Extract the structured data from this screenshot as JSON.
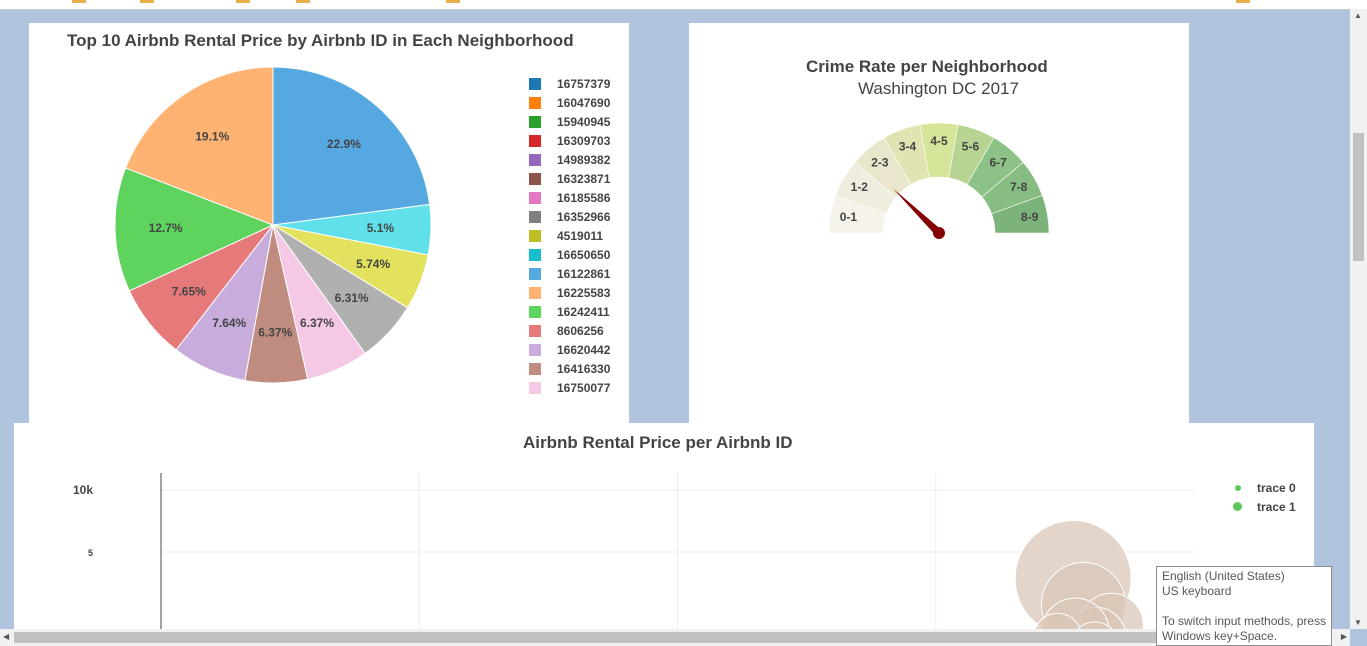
{
  "colors": {
    "page_background": "#b0c4de",
    "panel_background": "#ffffff",
    "gauge_needle": "#850000",
    "bubble_fill": "#d9c7b8"
  },
  "pie_chart": {
    "title": "Top 10 Airbnb Rental Price by Airbnb ID in Each Neighborhood"
  },
  "gauge_chart": {
    "title": "Crime Rate per Neighborhood",
    "subtitle": "Washington DC 2017"
  },
  "bubble_chart": {
    "title": "Airbnb Rental Price per Airbnb ID"
  },
  "chart_data": [
    {
      "type": "pie",
      "title": "Top 10 Airbnb Rental Price by Airbnb ID in Each Neighborhood",
      "slices": [
        {
          "label": "16122861",
          "percent": 22.9,
          "color": "#56a8e0"
        },
        {
          "label": "16650650",
          "percent": 5.1,
          "color": "#5fe0ea"
        },
        {
          "label": "4519011",
          "percent": 5.74,
          "color": "#e2e25e"
        },
        {
          "label": "16352966",
          "percent": 6.31,
          "color": "#b0b0b0"
        },
        {
          "label": "16750077",
          "percent": 6.37,
          "color": "#f5c8e6"
        },
        {
          "label": "16416330",
          "percent": 6.37,
          "color": "#c08c80"
        },
        {
          "label": "16620442",
          "percent": 7.64,
          "color": "#c8acdc"
        },
        {
          "label": "8606256",
          "percent": 7.65,
          "color": "#e67a7a"
        },
        {
          "label": "16242411",
          "percent": 12.7,
          "color": "#5ed35e"
        },
        {
          "label": "16225583",
          "percent": 19.1,
          "color": "#ffb373"
        }
      ],
      "legend": [
        {
          "label": "16757379",
          "color": "#1f77b4"
        },
        {
          "label": "16047690",
          "color": "#ff7f0e"
        },
        {
          "label": "15940945",
          "color": "#2ca02c"
        },
        {
          "label": "16309703",
          "color": "#d62728"
        },
        {
          "label": "14989382",
          "color": "#9467bd"
        },
        {
          "label": "16323871",
          "color": "#8c564b"
        },
        {
          "label": "16185586",
          "color": "#e377c2"
        },
        {
          "label": "16352966",
          "color": "#7f7f7f"
        },
        {
          "label": "4519011",
          "color": "#bcbd22"
        },
        {
          "label": "16650650",
          "color": "#17becf"
        },
        {
          "label": "16122861",
          "color": "#56a8e0"
        },
        {
          "label": "16225583",
          "color": "#ffb373"
        },
        {
          "label": "16242411",
          "color": "#5ed35e"
        },
        {
          "label": "8606256",
          "color": "#e67a7a"
        },
        {
          "label": "16620442",
          "color": "#c8acdc"
        },
        {
          "label": "16416330",
          "color": "#c08c80"
        },
        {
          "label": "16750077",
          "color": "#f5c8e6"
        }
      ]
    },
    {
      "type": "gauge",
      "title": "Crime Rate per Neighborhood",
      "subtitle": "Washington DC 2017",
      "range": [
        0,
        9
      ],
      "bands": [
        {
          "label": "0-1",
          "color": "#f5f2ea"
        },
        {
          "label": "1-2",
          "color": "#f0ecde"
        },
        {
          "label": "2-3",
          "color": "#e9e6cb"
        },
        {
          "label": "3-4",
          "color": "#e2e3b3"
        },
        {
          "label": "4-5",
          "color": "#d5e599"
        },
        {
          "label": "5-6",
          "color": "#b7d493"
        },
        {
          "label": "6-7",
          "color": "#8cc187"
        },
        {
          "label": "7-8",
          "color": "#87bd82"
        },
        {
          "label": "8-9",
          "color": "#7cb37b"
        }
      ],
      "needle_value": 2.2
    },
    {
      "type": "scatter",
      "title": "Airbnb Rental Price per Airbnb ID",
      "y_tick_labels": [
        "10k",
        "5"
      ],
      "series": [
        {
          "name": "trace 0",
          "color": "#5ec95e"
        },
        {
          "name": "trace 1",
          "color": "#5ec95e"
        }
      ],
      "bubbles": [
        {
          "x_frac": 0.883,
          "y_frac": 0.61,
          "size": 58
        },
        {
          "x_frac": 0.893,
          "y_frac": 0.76,
          "size": 42
        },
        {
          "x_frac": 0.92,
          "y_frac": 0.88,
          "size": 32
        },
        {
          "x_frac": 0.905,
          "y_frac": 0.95,
          "size": 30
        },
        {
          "x_frac": 0.885,
          "y_frac": 0.92,
          "size": 34
        },
        {
          "x_frac": 0.868,
          "y_frac": 0.95,
          "size": 24
        },
        {
          "x_frac": 0.904,
          "y_frac": 1.0,
          "size": 24
        },
        {
          "x_frac": 0.775,
          "y_frac": 1.05,
          "size": 20
        }
      ]
    }
  ],
  "ime_tooltip": {
    "line1": "English (United States)",
    "line2": "US keyboard",
    "line3": "To switch input methods, press",
    "line4": "Windows key+Space."
  }
}
